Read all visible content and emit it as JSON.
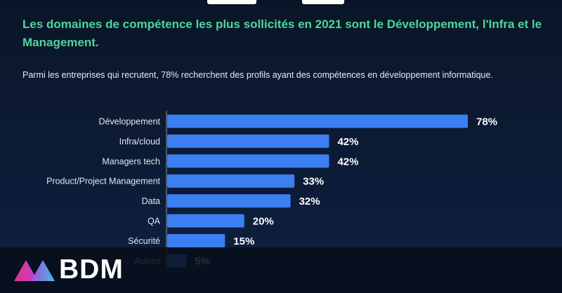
{
  "headline": "Les domaines de compétence les plus sollicités en 2021 sont le Développement, l'Infra et le Management.",
  "subtitle": "Parmi les entreprises qui recrutent, 78% recherchent des profils ayant des compétences en développement informatique.",
  "brand": {
    "name": "BDM"
  },
  "colors": {
    "bar": "#3b7ff2",
    "headline": "#4fd69a",
    "axis": "#8a97ad"
  },
  "chart_data": {
    "type": "bar",
    "orientation": "horizontal",
    "categories": [
      "Développement",
      "Infra/cloud",
      "Managers tech",
      "Product/Project Management",
      "Data",
      "QA",
      "Sécurité",
      "Autres"
    ],
    "values": [
      78,
      42,
      42,
      33,
      32,
      20,
      15,
      5
    ],
    "value_labels": [
      "78%",
      "42%",
      "42%",
      "33%",
      "32%",
      "20%",
      "15%",
      "5%"
    ],
    "xlim": [
      0,
      100
    ],
    "grid": false
  }
}
